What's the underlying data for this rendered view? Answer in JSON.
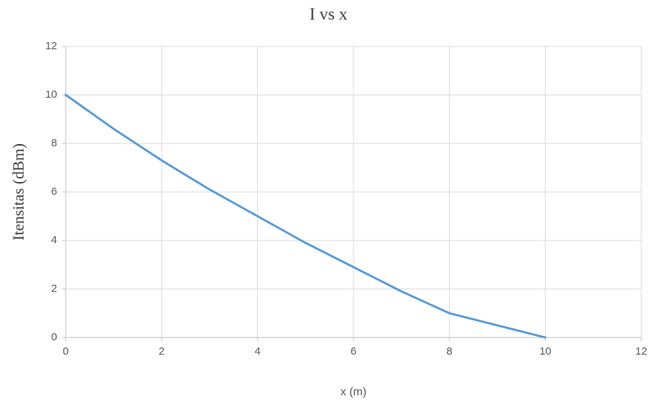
{
  "chart_data": {
    "type": "line",
    "title": "I vs x",
    "xlabel": "x (m)",
    "ylabel": "Itensitas (dBm)",
    "x": [
      0,
      1,
      2,
      3,
      4,
      5,
      6,
      7,
      8,
      9,
      10
    ],
    "series": [
      {
        "name": "I",
        "color": "#5b9bd5",
        "values": [
          10,
          8.6,
          7.3,
          6.1,
          5.0,
          3.9,
          2.9,
          1.9,
          1.0,
          0.5,
          0
        ]
      }
    ],
    "xlim": [
      0,
      12
    ],
    "xticks": [
      0,
      2,
      4,
      6,
      8,
      10,
      12
    ],
    "ylim": [
      0,
      12
    ],
    "yticks": [
      0,
      2,
      4,
      6,
      8,
      10,
      12
    ],
    "grid": true
  }
}
